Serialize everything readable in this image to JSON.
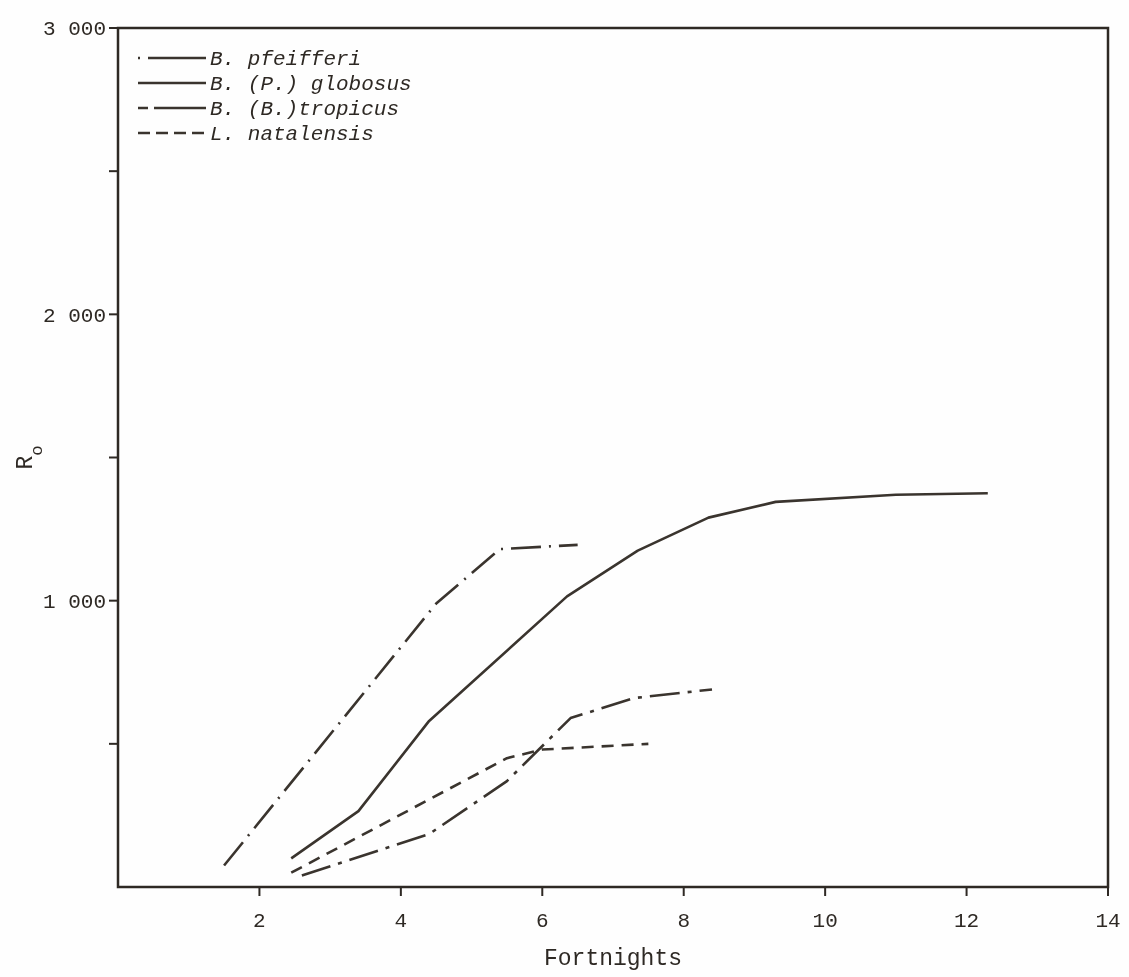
{
  "chart_data": {
    "type": "line",
    "xlabel": "Fortnights",
    "ylabel": "R$_{o}$",
    "xlim": [
      0,
      14
    ],
    "xticks": [
      2,
      4,
      6,
      8,
      10,
      12,
      14
    ],
    "ylim": [
      0,
      3000
    ],
    "yticks": [
      {
        "value": 500,
        "label": null
      },
      {
        "value": 1000,
        "label": "1 000"
      },
      {
        "value": 1500,
        "label": null
      },
      {
        "value": 2000,
        "label": "2 000"
      },
      {
        "value": 2500,
        "label": null
      },
      {
        "value": 3000,
        "label": "3 000"
      }
    ],
    "grid": false,
    "legend": "top left",
    "marker": "none",
    "series": [
      {
        "name": "B. pfeifferi",
        "color": "#3a342e",
        "line_style": "dashdot",
        "x": [
          1.5,
          4.5,
          5.4,
          6.5
        ],
        "values": [
          75,
          990,
          1180,
          1195
        ]
      },
      {
        "name": "B. (P.) globosus",
        "color": "#3a342e",
        "line_style": "solid",
        "x": [
          2.45,
          3.4,
          4.4,
          6.35,
          7.35,
          8.35,
          9.3,
          11,
          12.3
        ],
        "values": [
          100,
          265,
          580,
          1015,
          1175,
          1290,
          1345,
          1370,
          1375
        ]
      },
      {
        "name": "B. (B.)tropicus",
        "color": "#3a342e",
        "line_style": "longdash",
        "x": [
          2.6,
          4.4,
          5.5,
          6.4,
          7.3,
          8.4
        ],
        "values": [
          40,
          185,
          370,
          590,
          660,
          690
        ]
      },
      {
        "name": "L. natalensis",
        "color": "#3a342e",
        "line_style": "dashed",
        "x": [
          2.45,
          5.5,
          6,
          7.5
        ],
        "values": [
          50,
          450,
          480,
          500
        ]
      }
    ]
  }
}
